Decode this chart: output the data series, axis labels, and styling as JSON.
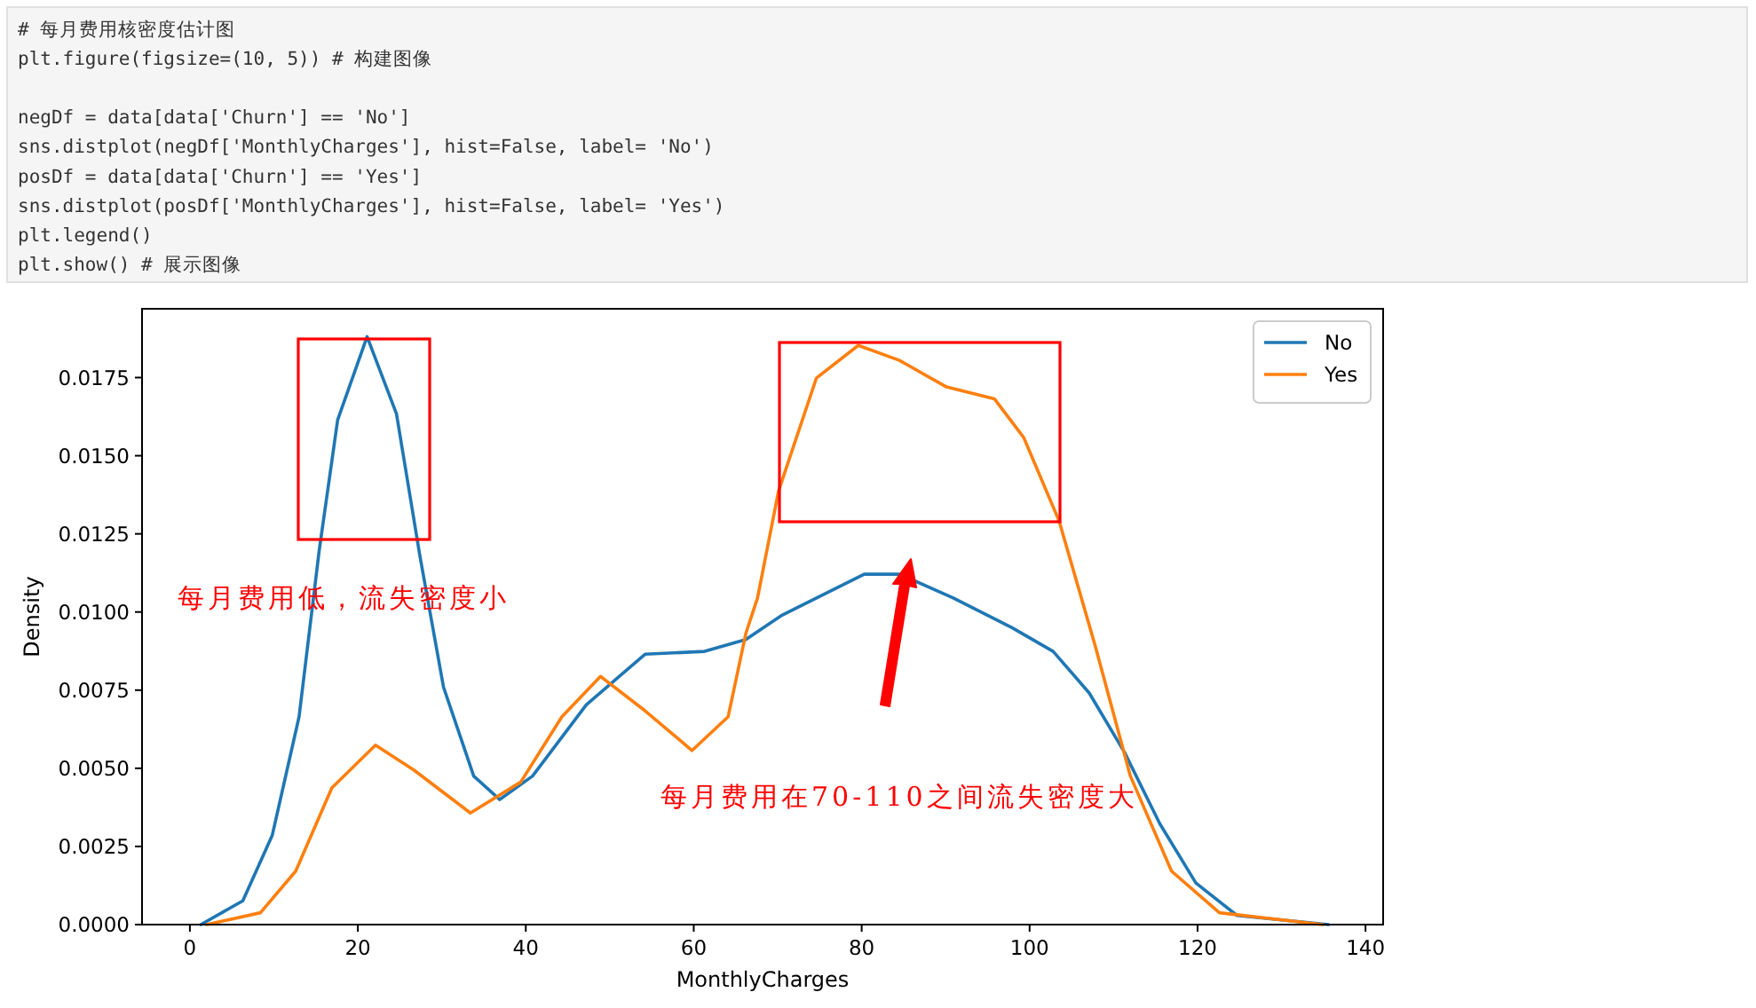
{
  "chart_data": {
    "type": "line",
    "xlabel": "MonthlyCharges",
    "ylabel": "Density",
    "x": [
      1.3,
      6.3,
      9.8,
      13.0,
      15.4,
      17.6,
      21.1,
      24.6,
      27.4,
      30.2,
      33.8,
      36.9,
      40.8,
      47.2,
      54.2,
      61.3,
      66.2,
      70.4,
      73.2,
      80.3,
      84.5,
      90.9,
      97.9,
      102.8,
      107.1,
      111.3,
      115.5,
      119.8,
      124.7,
      135.6
    ],
    "series": [
      {
        "name": "No",
        "color": "#1f77b4",
        "values": [
          0,
          0.00076,
          0.00285,
          0.00665,
          0.01197,
          0.01615,
          0.01881,
          0.01634,
          0.01178,
          0.0076,
          0.00475,
          0.004,
          0.00475,
          0.00703,
          0.00865,
          0.00874,
          0.00912,
          0.00988,
          0.01026,
          0.01121,
          0.01121,
          0.01045,
          0.0095,
          0.00874,
          0.00741,
          0.00551,
          0.00323,
          0.00133,
          0.00029,
          0
        ]
      },
      {
        "name": "Yes",
        "color": "#ff7f0e",
        "x": [
          2.0,
          8.4,
          12.6,
          16.9,
          22.1,
          26.7,
          33.4,
          39.4,
          44.3,
          48.9,
          54.2,
          59.8,
          64.1,
          66.2,
          67.6,
          70.1,
          74.6,
          79.6,
          84.5,
          90.1,
          95.8,
          99.3,
          103.5,
          107.8,
          112.0,
          116.9,
          122.6,
          134.9
        ],
        "values": [
          0,
          0.00038,
          0.00171,
          0.00437,
          0.00574,
          0.00494,
          0.00357,
          0.00456,
          0.00665,
          0.00794,
          0.00684,
          0.00557,
          0.00665,
          0.00931,
          0.01045,
          0.01387,
          0.01748,
          0.01853,
          0.01805,
          0.0172,
          0.01682,
          0.01558,
          0.01292,
          0.00893,
          0.00475,
          0.00171,
          0.00038,
          0
        ]
      }
    ],
    "xlim": [
      -5.7,
      142.1
    ],
    "ylim": [
      0,
      0.0197
    ],
    "xticks": [
      0,
      20,
      40,
      60,
      80,
      100,
      120,
      140
    ],
    "yticks": [
      {
        "value": 0,
        "label": "0.0000"
      },
      {
        "value": 0.0025,
        "label": "0.0025"
      },
      {
        "value": 0.005,
        "label": "0.0050"
      },
      {
        "value": 0.0075,
        "label": "0.0075"
      },
      {
        "value": 0.01,
        "label": "0.0100"
      },
      {
        "value": 0.0125,
        "label": "0.0125"
      },
      {
        "value": 0.015,
        "label": "0.0150"
      },
      {
        "value": 0.0175,
        "label": "0.0175"
      }
    ],
    "legend": "top right",
    "grid": false,
    "marker": "none",
    "line_style": "solid",
    "annotations": [
      "# 每月费用核密度估计图",
      "plt.figure(figsize=(10, 5))    # 构建图像",
      "negDf = data[data['Churn'] == 'No']",
      "sns.distplot(negDf['MonthlyCharges'], hist=False, label= 'No')",
      "posDf = data[data['Churn'] == 'Yes']",
      "sns.distplot(posDf['MonthlyCharges'], hist=False, label= 'Yes')",
      "plt.legend()",
      "plt.show()    # 展示图像",
      "每月费用低，流失密度小",
      "每月费用在70-110之间流失密度大"
    ]
  }
}
